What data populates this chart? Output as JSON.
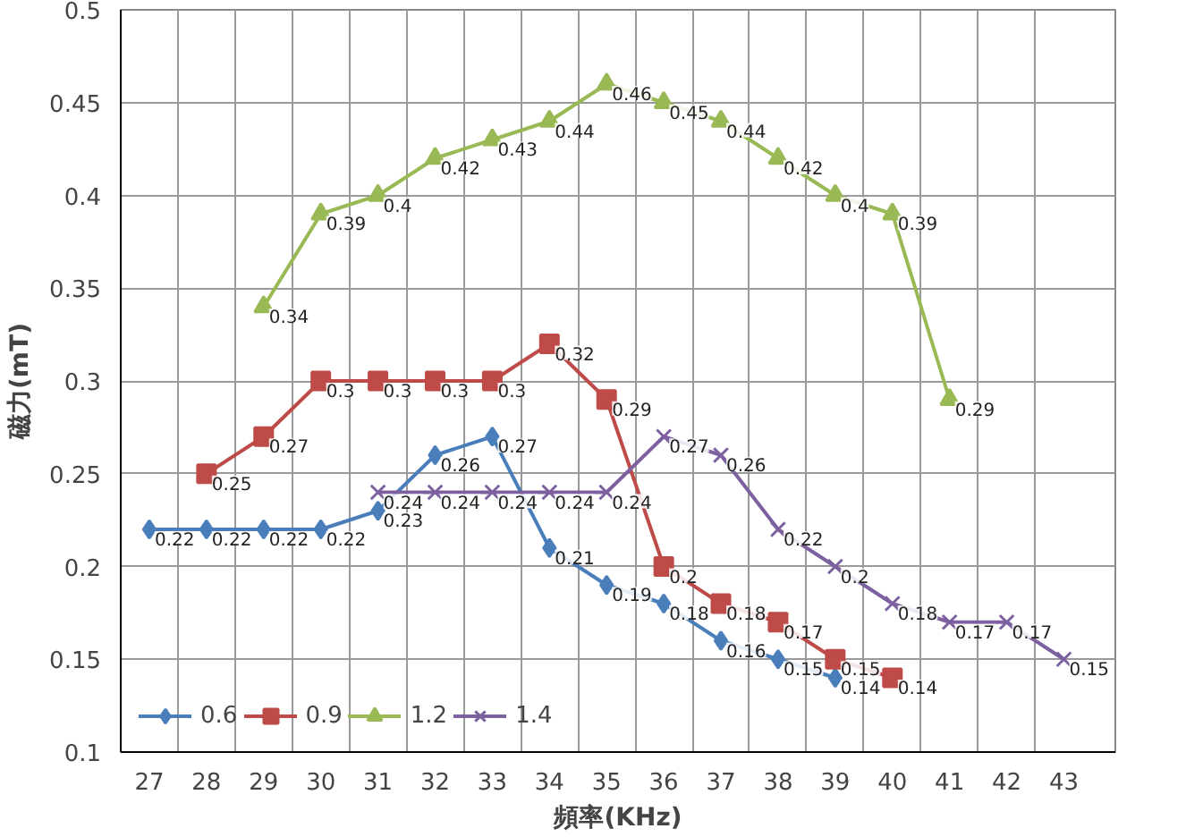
{
  "chart_data": {
    "type": "line",
    "xlabel": "頻率(KHz)",
    "ylabel": "磁力(mT)",
    "categories": [
      "27",
      "28",
      "29",
      "30",
      "31",
      "32",
      "33",
      "34",
      "35",
      "36",
      "37",
      "38",
      "39",
      "40",
      "41",
      "42",
      "43"
    ],
    "series": [
      {
        "name": "0.6",
        "color": "#4a7ebb",
        "marker": "diamond",
        "values": [
          0.22,
          0.22,
          0.22,
          0.22,
          0.23,
          0.26,
          0.27,
          0.21,
          0.19,
          0.18,
          0.16,
          0.15,
          0.14,
          null,
          null,
          null,
          null
        ]
      },
      {
        "name": "0.9",
        "color": "#be4b48",
        "marker": "square",
        "values": [
          null,
          0.25,
          0.27,
          0.3,
          0.3,
          0.3,
          0.3,
          0.32,
          0.29,
          0.2,
          0.18,
          0.17,
          0.15,
          0.14,
          null,
          null,
          null
        ]
      },
      {
        "name": "1.2",
        "color": "#98b954",
        "marker": "triangle",
        "values": [
          null,
          null,
          0.34,
          0.39,
          0.4,
          0.42,
          0.43,
          0.44,
          0.46,
          0.45,
          0.44,
          0.42,
          0.4,
          0.39,
          0.29,
          null,
          null
        ]
      },
      {
        "name": "1.4",
        "color": "#7d60a0",
        "marker": "cross",
        "values": [
          null,
          null,
          null,
          null,
          0.24,
          0.24,
          0.24,
          0.24,
          0.24,
          0.27,
          0.26,
          0.22,
          0.2,
          0.18,
          0.17,
          0.17,
          0.15
        ]
      }
    ],
    "ylim": [
      0.1,
      0.5
    ],
    "yticks": [
      0.1,
      0.15,
      0.2,
      0.25,
      0.3,
      0.35,
      0.4,
      0.45,
      0.5
    ],
    "grid": true,
    "legend": "bottom left",
    "data_labels": true
  }
}
